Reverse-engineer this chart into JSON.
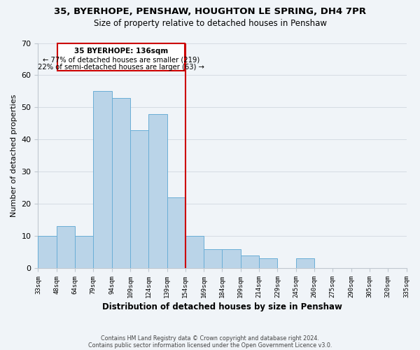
{
  "title1": "35, BYERHOPE, PENSHAW, HOUGHTON LE SPRING, DH4 7PR",
  "title2": "Size of property relative to detached houses in Penshaw",
  "xlabel": "Distribution of detached houses by size in Penshaw",
  "ylabel": "Number of detached properties",
  "categories": [
    "33sqm",
    "48sqm",
    "64sqm",
    "79sqm",
    "94sqm",
    "109sqm",
    "124sqm",
    "139sqm",
    "154sqm",
    "169sqm",
    "184sqm",
    "199sqm",
    "214sqm",
    "229sqm",
    "245sqm",
    "260sqm",
    "275sqm",
    "290sqm",
    "305sqm",
    "320sqm",
    "335sqm"
  ],
  "bar_heights": [
    10,
    13,
    10,
    55,
    53,
    43,
    48,
    22,
    10,
    6,
    6,
    4,
    3,
    0,
    3,
    0,
    0,
    0,
    0,
    0
  ],
  "bar_color": "#bad4e8",
  "bar_edge_color": "#6aaed6",
  "highlight_line_color": "#cc0000",
  "ylim": [
    0,
    70
  ],
  "yticks": [
    0,
    10,
    20,
    30,
    40,
    50,
    60,
    70
  ],
  "annotation_title": "35 BYERHOPE: 136sqm",
  "annotation_line1": "← 77% of detached houses are smaller (219)",
  "annotation_line2": "22% of semi-detached houses are larger (63) →",
  "annotation_box_color": "#ffffff",
  "annotation_box_edge_color": "#cc0000",
  "footer1": "Contains HM Land Registry data © Crown copyright and database right 2024.",
  "footer2": "Contains public sector information licensed under the Open Government Licence v3.0.",
  "bg_color": "#f0f4f8"
}
